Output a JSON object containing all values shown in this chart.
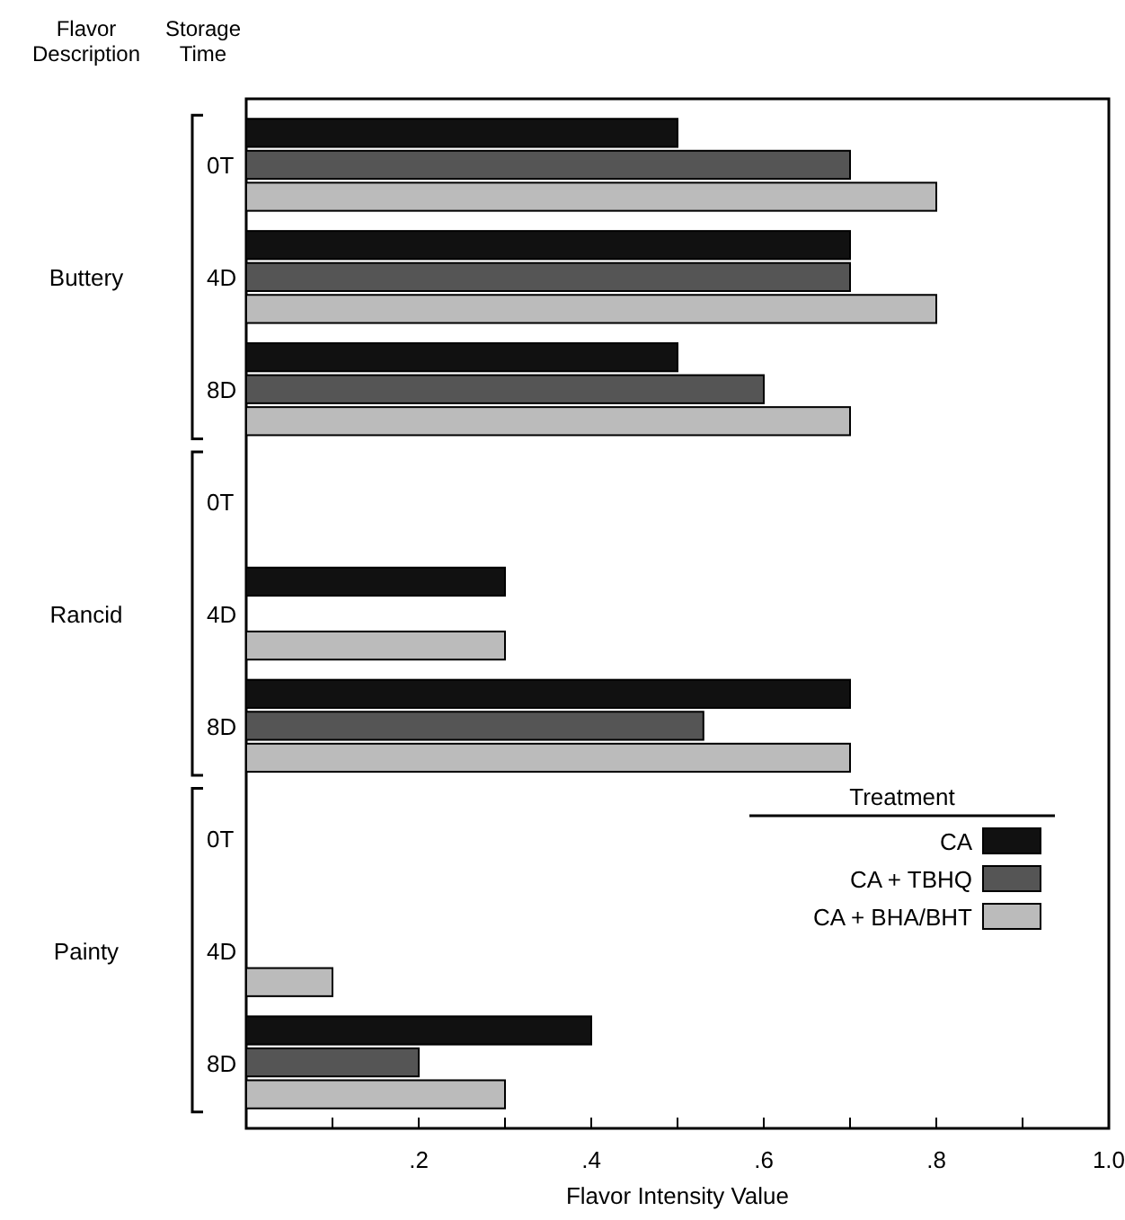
{
  "chart_data": {
    "type": "bar",
    "orientation": "horizontal",
    "xlabel": "Flavor Intensity Value",
    "ylabel": "Storage Time",
    "legend_title": "Treatment",
    "legend": "bottom right",
    "annotations": [
      "Flavor Description",
      "Buttery",
      "Rancid",
      "Painty"
    ],
    "categories": [
      "0T",
      "4D",
      "8D",
      "0T",
      "4D",
      "8D",
      "0T",
      "4D",
      "8D"
    ],
    "series": [
      {
        "name": "CA",
        "color": "#111111",
        "values": [
          0.5,
          0.7,
          0.5,
          null,
          0.3,
          0.7,
          null,
          null,
          0.4
        ]
      },
      {
        "name": "CA + TBHQ",
        "color": "#555555",
        "values": [
          0.7,
          0.7,
          0.6,
          null,
          null,
          0.53,
          null,
          null,
          0.2
        ]
      },
      {
        "name": "CA + BHA/BHT",
        "color": "#bbbbbb",
        "values": [
          0.8,
          0.8,
          0.7,
          null,
          0.3,
          0.7,
          null,
          0.1,
          0.3
        ]
      }
    ],
    "xlim": [
      0,
      1
    ],
    "xticks": [
      {
        "value": 0,
        "label": null
      },
      {
        "value": 0.1,
        "label": null
      },
      {
        "value": 0.2,
        "label": ".2"
      },
      {
        "value": 0.3,
        "label": null
      },
      {
        "value": 0.4,
        "label": ".4"
      },
      {
        "value": 0.5,
        "label": null
      },
      {
        "value": 0.6,
        "label": ".6"
      },
      {
        "value": 0.7,
        "label": null
      },
      {
        "value": 0.8,
        "label": ".8"
      },
      {
        "value": 0.9,
        "label": null
      },
      {
        "value": 1,
        "label": "1.0"
      }
    ],
    "grid": false
  }
}
